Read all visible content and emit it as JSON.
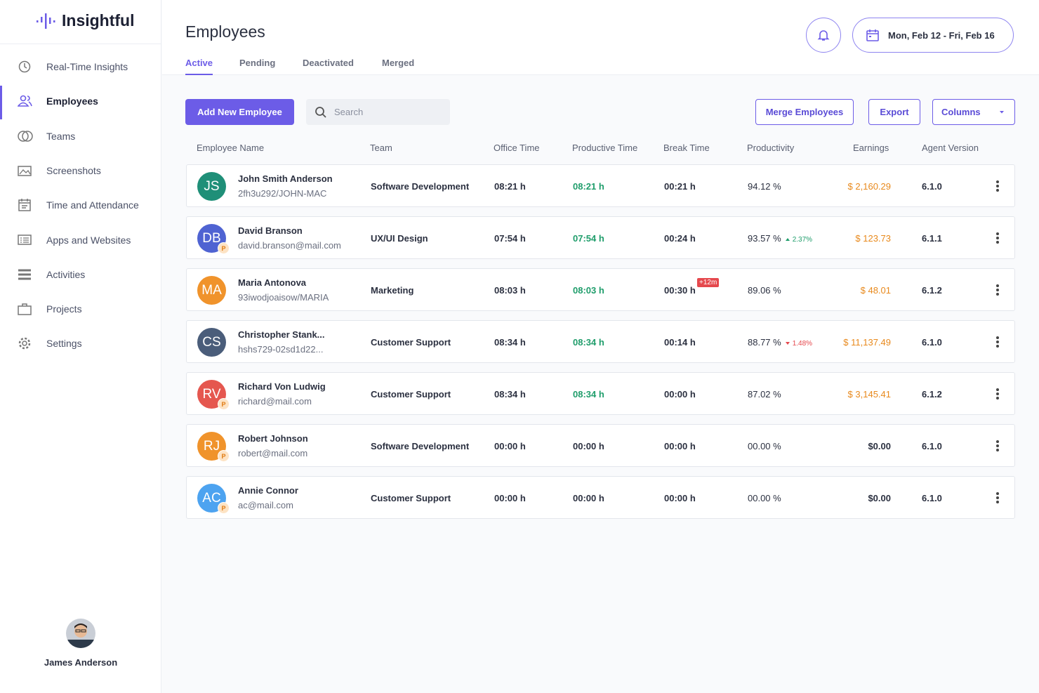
{
  "sidebar": {
    "brand": "Insightful",
    "nav": [
      "Real-Time Insights",
      "Employees",
      "Teams",
      "Screenshots",
      "Time and Attendance",
      "Apps and Websites",
      "Activities",
      "Projects",
      "Settings"
    ],
    "user": "James Anderson"
  },
  "header": {
    "title": "Employees",
    "tabs": [
      "Active",
      "Pending",
      "Deactivated",
      "Merged"
    ],
    "date_range": "Mon, Feb 12 - Fri,  Feb 16"
  },
  "toolbar": {
    "add": "Add New Employee",
    "search": "Search",
    "merge": "Merge Employees",
    "export": "Export",
    "columns": "Columns"
  },
  "table": {
    "columns": [
      "Employee Name",
      "Team",
      "Office Time",
      "Productive Time",
      "Break Time",
      "Productivity",
      "Earnings",
      "Agent Version"
    ],
    "rows": [
      {
        "initials": "JS",
        "color": "#1f8f78",
        "name": "John Smith Anderson",
        "sub": "2fh3u292/JOHN-MAC",
        "team": "Software Development",
        "office": "08:21 h",
        "productive": "08:21 h",
        "break": "00:21 h",
        "productivity": "94.12 %",
        "earnings": "$ 2,160.29",
        "version": "6.1.0",
        "highlight": true
      },
      {
        "initials": "DB",
        "color": "#4f63d2",
        "badge": "P",
        "name": "David Branson",
        "sub": "david.branson@mail.com",
        "team": "UX/UI Design",
        "office": "07:54 h",
        "productive": "07:54 h",
        "break": "00:24 h",
        "productivity": "93.57 %",
        "change": {
          "label": "2.37%",
          "direction": "up"
        },
        "earnings": "$ 123.73",
        "version": "6.1.1",
        "highlight": true
      },
      {
        "initials": "MA",
        "color": "#f0932b",
        "name": "Maria Antonova",
        "sub": "93iwodjoaisow/MARIA",
        "team": "Marketing",
        "office": "08:03 h",
        "productive": "08:03 h",
        "break": "00:30 h",
        "break_extra": "+12m",
        "productivity": "89.06 %",
        "earnings": "$ 48.01",
        "version": "6.1.2",
        "highlight": true
      },
      {
        "initials": "CS",
        "color": "#4a5d7a",
        "name": "Christopher Stank...",
        "sub": "hshs729-02sd1d22...",
        "team": "Customer Support",
        "office": "08:34 h",
        "productive": "08:34 h",
        "break": "00:14 h",
        "productivity": "88.77 %",
        "change": {
          "label": "1.48%",
          "direction": "down"
        },
        "earnings": "$ 11,137.49",
        "version": "6.1.0",
        "highlight": true
      },
      {
        "initials": "RV",
        "color": "#e5574f",
        "badge": "P",
        "name": "Richard Von Ludwig",
        "sub": "richard@mail.com",
        "team": "Customer Support",
        "office": "08:34 h",
        "productive": "08:34 h",
        "break": "00:00 h",
        "productivity": "87.02 %",
        "earnings": "$ 3,145.41",
        "version": "6.1.2",
        "highlight": true
      },
      {
        "initials": "RJ",
        "color": "#f0932b",
        "badge": "P",
        "name": "Robert Johnson",
        "sub": "robert@mail.com",
        "team": "Software Development",
        "office": "00:00 h",
        "productive": "00:00 h",
        "break": "00:00 h",
        "productivity": "00.00 %",
        "earnings": "$0.00",
        "version": "6.1.0",
        "highlight": false
      },
      {
        "initials": "AC",
        "color": "#4da3f0",
        "badge": "P",
        "name": "Annie Connor",
        "sub": "ac@mail.com",
        "team": "Customer Support",
        "office": "00:00 h",
        "productive": "00:00 h",
        "break": "00:00 h",
        "productivity": "00.00 %",
        "earnings": "$0.00",
        "version": "6.1.0",
        "highlight": false
      }
    ]
  }
}
